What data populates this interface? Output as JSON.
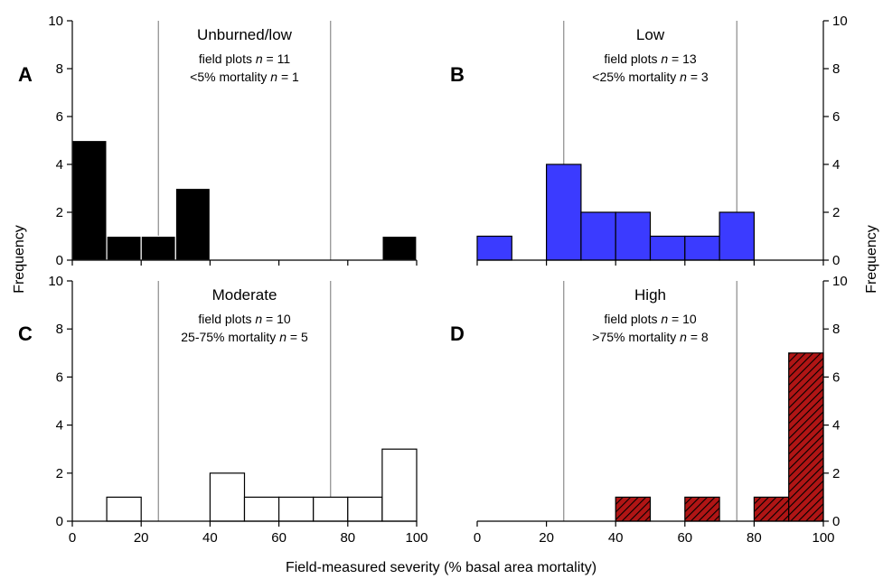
{
  "figure": {
    "xlabel": "Field-measured severity (% basal area mortality)",
    "ylabel": "Frequency",
    "x_ticks": [
      0,
      20,
      40,
      60,
      80,
      100
    ],
    "y_ticks": [
      0,
      2,
      4,
      6,
      8,
      10
    ],
    "reference_lines": [
      25,
      75
    ]
  },
  "chart_data": [
    {
      "type": "bar",
      "panel": "A",
      "title": "Unburned/low",
      "subtitle_lines": [
        [
          "field plots ",
          "n",
          " = 11"
        ],
        [
          "<5% mortality ",
          "n",
          " = 1"
        ]
      ],
      "bin_edges": [
        0,
        10,
        20,
        30,
        40,
        50,
        60,
        70,
        80,
        90,
        100
      ],
      "values": [
        5,
        1,
        1,
        3,
        0,
        0,
        0,
        0,
        0,
        1
      ],
      "xlim": [
        0,
        100
      ],
      "ylim": [
        0,
        10
      ],
      "fill": "#000000",
      "stroke": "#ffffff",
      "hatch": false
    },
    {
      "type": "bar",
      "panel": "B",
      "title": "Low",
      "subtitle_lines": [
        [
          "field plots ",
          "n",
          " = 13"
        ],
        [
          "<25% mortality ",
          "n",
          " = 3"
        ]
      ],
      "bin_edges": [
        0,
        10,
        20,
        30,
        40,
        50,
        60,
        70,
        80,
        90,
        100
      ],
      "values": [
        1,
        0,
        4,
        2,
        2,
        1,
        1,
        2,
        0,
        0
      ],
      "xlim": [
        0,
        100
      ],
      "ylim": [
        0,
        10
      ],
      "fill": "#3b3bff",
      "stroke": "#000000",
      "hatch": false
    },
    {
      "type": "bar",
      "panel": "C",
      "title": "Moderate",
      "subtitle_lines": [
        [
          "field plots ",
          "n",
          " = 10"
        ],
        [
          "25-75% mortality ",
          "n",
          " = 5"
        ]
      ],
      "bin_edges": [
        0,
        10,
        20,
        30,
        40,
        50,
        60,
        70,
        80,
        90,
        100
      ],
      "values": [
        0,
        1,
        0,
        0,
        2,
        1,
        1,
        1,
        1,
        3
      ],
      "xlim": [
        0,
        100
      ],
      "ylim": [
        0,
        10
      ],
      "fill": "#ffffff",
      "stroke": "#000000",
      "hatch": false
    },
    {
      "type": "bar",
      "panel": "D",
      "title": "High",
      "subtitle_lines": [
        [
          "field plots ",
          "n",
          " = 10"
        ],
        [
          ">75% mortality ",
          "n",
          " = 8"
        ]
      ],
      "bin_edges": [
        0,
        10,
        20,
        30,
        40,
        50,
        60,
        70,
        80,
        90,
        100
      ],
      "values": [
        0,
        0,
        0,
        0,
        1,
        0,
        1,
        0,
        1,
        7
      ],
      "xlim": [
        0,
        100
      ],
      "ylim": [
        0,
        10
      ],
      "fill": "#b01515",
      "stroke": "#000000",
      "hatch": true
    }
  ]
}
